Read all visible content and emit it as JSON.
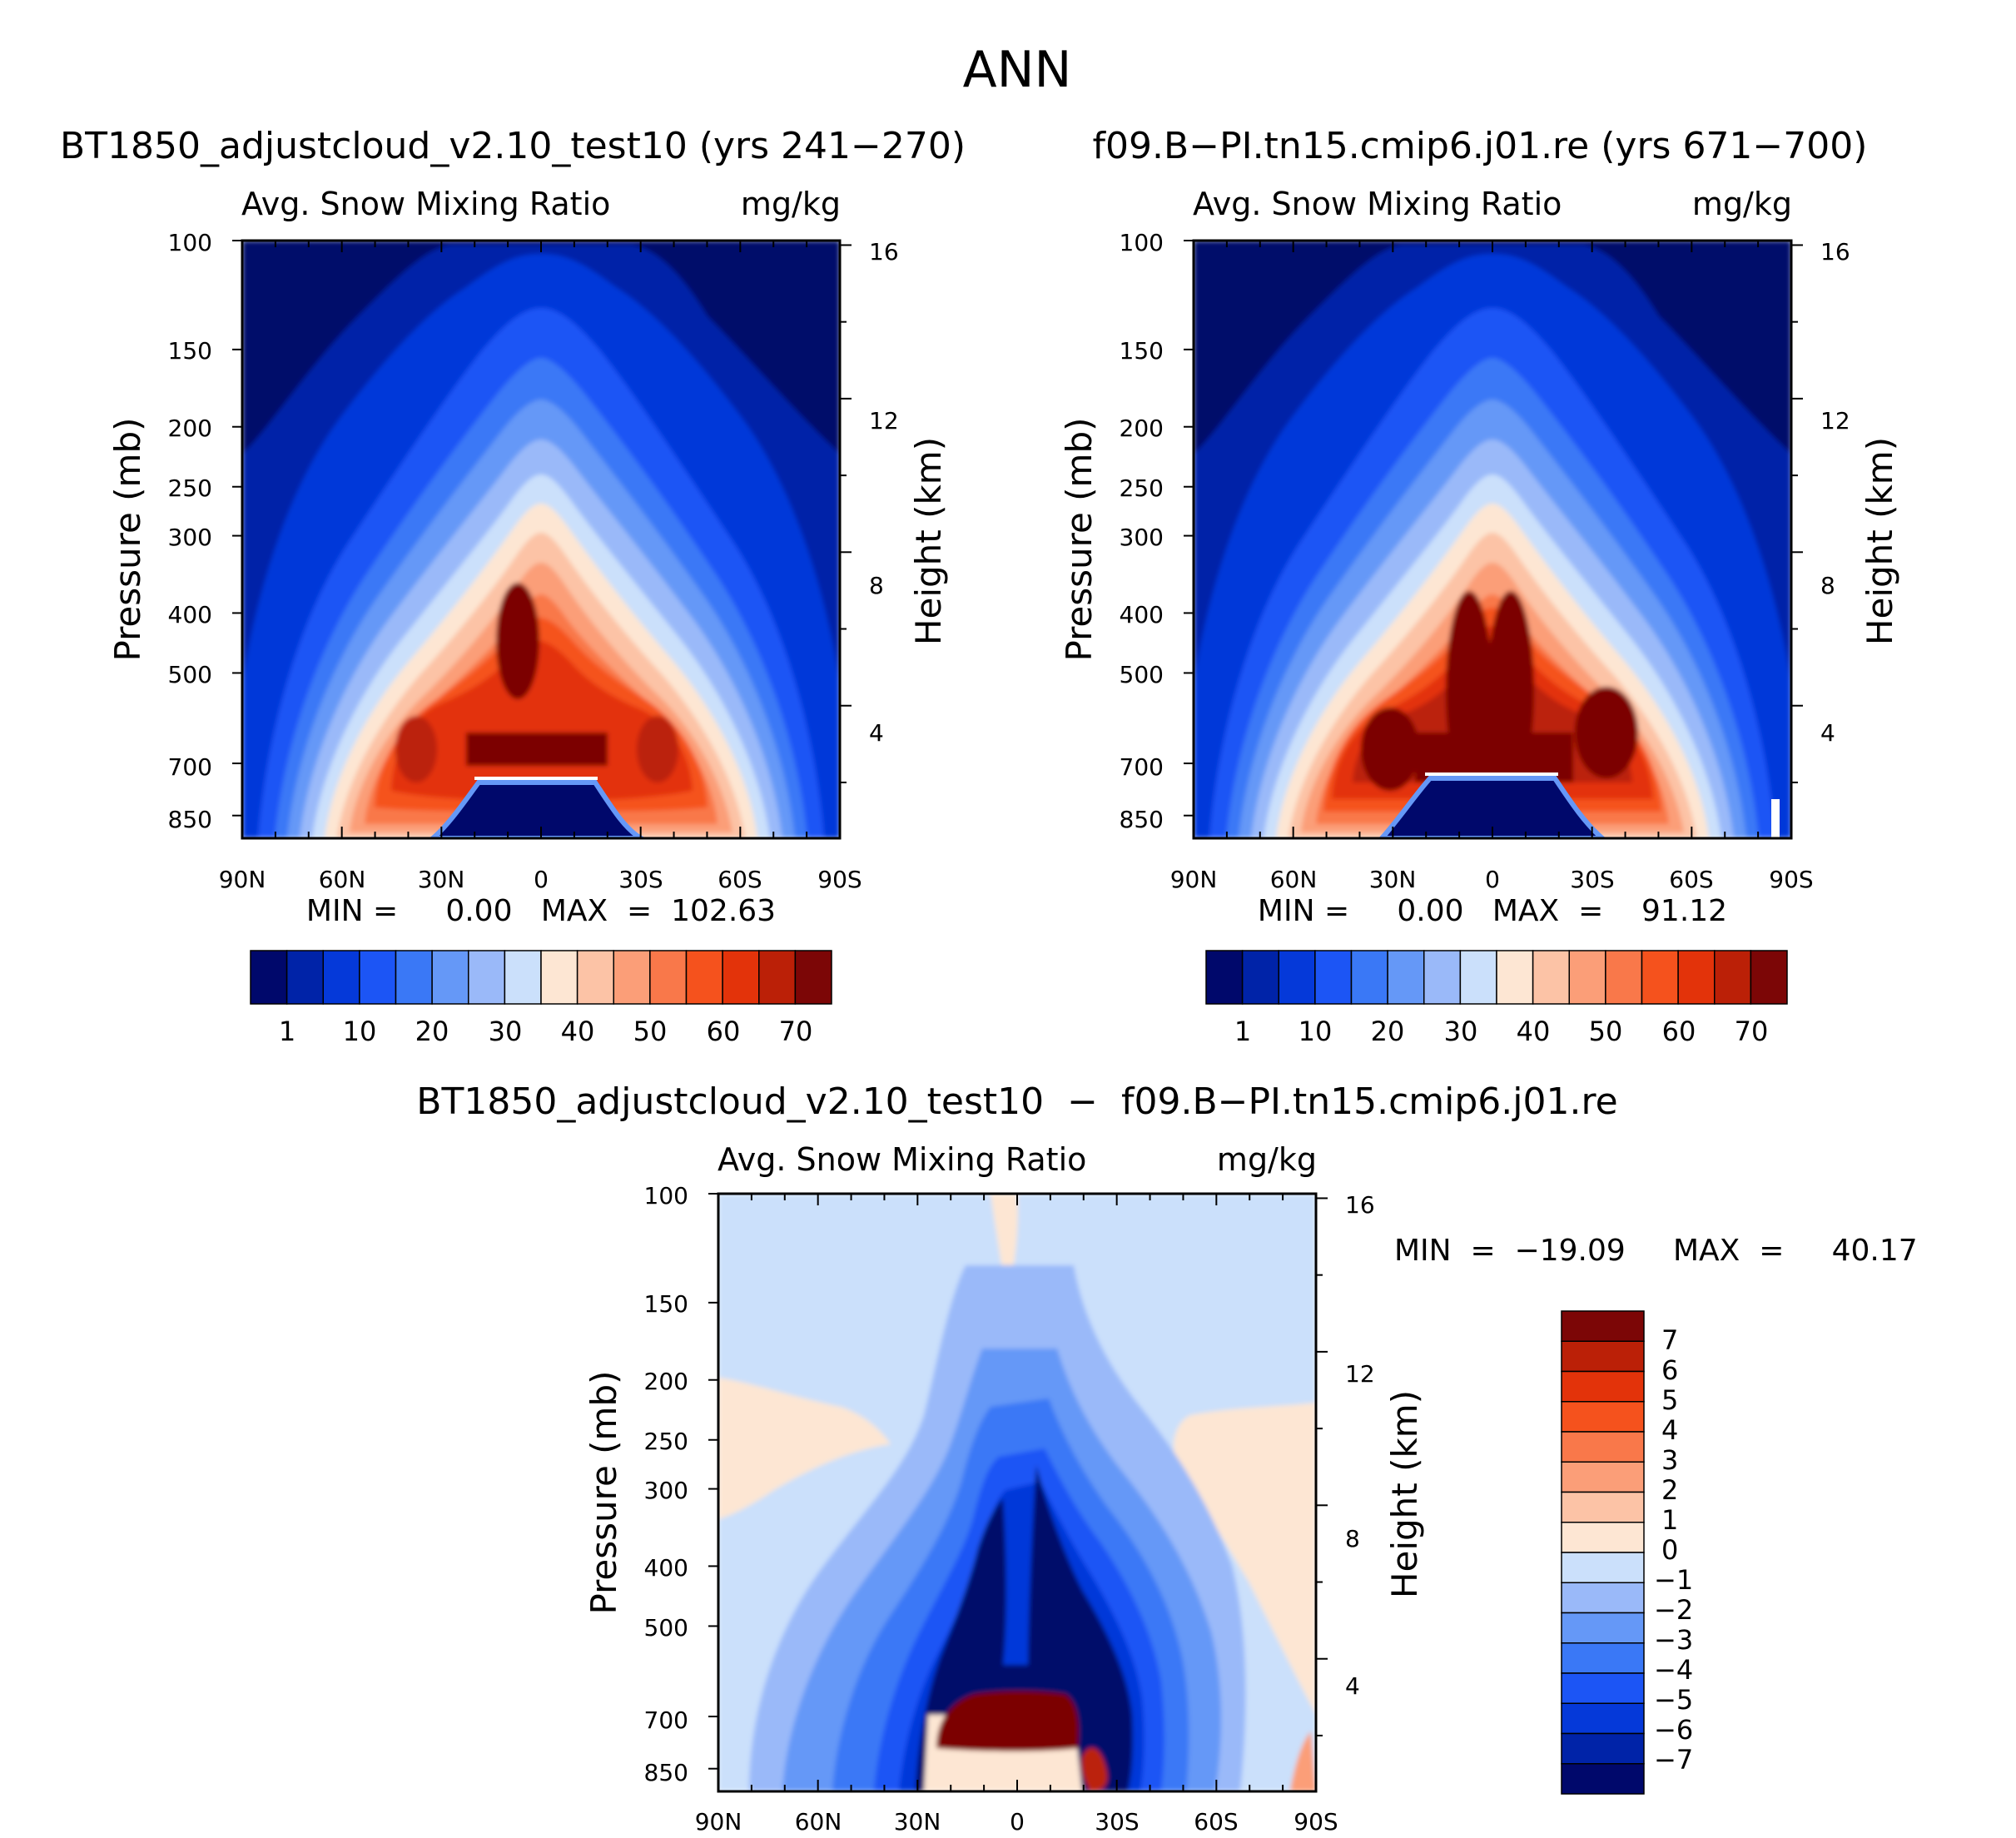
{
  "chart_data": [
    {
      "type": "heatmap",
      "id": "panel1",
      "title": "BT1850_adjustcloud_v2.10_test10 (yrs 241−270)",
      "variable": "Avg. Snow Mixing Ratio",
      "units": "mg/kg",
      "xlabel": "",
      "ylabel": "Pressure (mb)",
      "y2label": "Height (km)",
      "x_ticks": [
        "90N",
        "60N",
        "30N",
        "0",
        "30S",
        "60S",
        "90S"
      ],
      "y_ticks": [
        100,
        150,
        200,
        250,
        300,
        400,
        500,
        700,
        850
      ],
      "y2_ticks": [
        16,
        12,
        8,
        4
      ],
      "ylim": [
        100,
        925
      ],
      "stats_text": "MIN =     0.00   MAX  =  102.63",
      "min": 0.0,
      "max": 102.63,
      "colorbar": {
        "orientation": "horizontal",
        "labels": [
          "1",
          "10",
          "20",
          "30",
          "40",
          "50",
          "60",
          "70"
        ],
        "levels": [
          1,
          5,
          10,
          15,
          20,
          25,
          30,
          35,
          40,
          45,
          50,
          55,
          60,
          65,
          70
        ]
      }
    },
    {
      "type": "heatmap",
      "id": "panel2",
      "title": "f09.B−PI.tn15.cmip6.j01.re (yrs 671−700)",
      "variable": "Avg. Snow Mixing Ratio",
      "units": "mg/kg",
      "xlabel": "",
      "ylabel": "Pressure (mb)",
      "y2label": "Height (km)",
      "x_ticks": [
        "90N",
        "60N",
        "30N",
        "0",
        "30S",
        "60S",
        "90S"
      ],
      "y_ticks": [
        100,
        150,
        200,
        250,
        300,
        400,
        500,
        700,
        850
      ],
      "y2_ticks": [
        16,
        12,
        8,
        4
      ],
      "ylim": [
        100,
        925
      ],
      "stats_text": "MIN =     0.00   MAX  =    91.12",
      "min": 0.0,
      "max": 91.12,
      "colorbar": {
        "orientation": "horizontal",
        "labels": [
          "1",
          "10",
          "20",
          "30",
          "40",
          "50",
          "60",
          "70"
        ],
        "levels": [
          1,
          5,
          10,
          15,
          20,
          25,
          30,
          35,
          40,
          45,
          50,
          55,
          60,
          65,
          70
        ]
      }
    },
    {
      "type": "heatmap",
      "id": "panel3",
      "title": "BT1850_adjustcloud_v2.10_test10  −  f09.B−PI.tn15.cmip6.j01.re",
      "variable": "Avg. Snow Mixing Ratio",
      "units": "mg/kg",
      "xlabel": "",
      "ylabel": "Pressure (mb)",
      "y2label": "Height (km)",
      "x_ticks": [
        "90N",
        "60N",
        "30N",
        "0",
        "30S",
        "60S",
        "90S"
      ],
      "y_ticks": [
        100,
        150,
        200,
        250,
        300,
        400,
        500,
        700,
        850
      ],
      "y2_ticks": [
        16,
        12,
        8,
        4
      ],
      "ylim": [
        100,
        925
      ],
      "stats_text": "MIN  =  −19.09     MAX  =     40.17",
      "min": -19.09,
      "max": 40.17,
      "colorbar": {
        "orientation": "vertical",
        "labels": [
          "7",
          "6",
          "5",
          "4",
          "3",
          "2",
          "1",
          "0",
          "−1",
          "−2",
          "−3",
          "−4",
          "−5",
          "−6",
          "−7"
        ],
        "levels": [
          7,
          6,
          5,
          4,
          3,
          2,
          1,
          0,
          -1,
          -2,
          -3,
          -4,
          -5,
          -6,
          -7
        ]
      }
    }
  ],
  "figure": {
    "suptitle": "ANN",
    "seq_colors": [
      "#00086b",
      "#0023a8",
      "#0539d9",
      "#1c55f5",
      "#3a78f6",
      "#6598f7",
      "#9ab9f9",
      "#cbe0fb",
      "#fde6d3",
      "#fcc3a6",
      "#fb9e78",
      "#f9784a",
      "#f5521d",
      "#e3330a",
      "#bb2007",
      "#7c0606"
    ],
    "diff_colors_top_to_bottom": [
      "#7c0606",
      "#bb2007",
      "#e3330a",
      "#f5521d",
      "#f9784a",
      "#fb9e78",
      "#fcc3a6",
      "#fde6d3",
      "#cbe0fb",
      "#9ab9f9",
      "#6598f7",
      "#3a78f6",
      "#1c55f5",
      "#0539d9",
      "#0023a8",
      "#00086b"
    ]
  }
}
